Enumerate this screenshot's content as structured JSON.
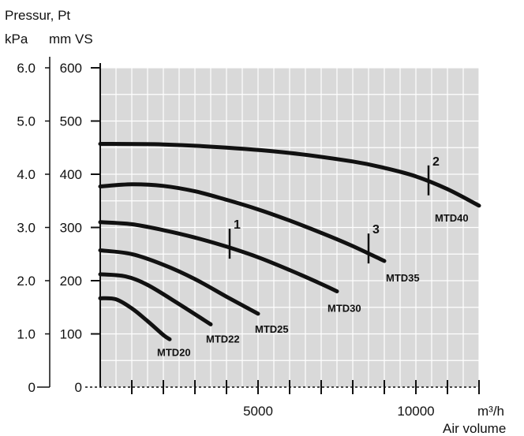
{
  "chart_data": {
    "type": "line",
    "title": "",
    "ylabel": "Pressur, Pt",
    "y_unit_primary": "kPa",
    "y_unit_secondary": "mm VS",
    "xlabel": "Air volume",
    "x_unit": "m³/h",
    "xlim": [
      0,
      12000
    ],
    "ylim": [
      0,
      600
    ],
    "grid": true,
    "y_ticks_kpa": [
      "0",
      "1.0",
      "2.0",
      "3.0",
      "4.0",
      "5.0",
      "6.0"
    ],
    "y_ticks_mmvs": [
      "0",
      "100",
      "200",
      "300",
      "400",
      "500",
      "600"
    ],
    "x_tick_labels": [
      {
        "value": 5000,
        "label": "5000"
      },
      {
        "value": 10000,
        "label": "10000"
      }
    ],
    "series": [
      {
        "name": "MTD20",
        "points": [
          [
            0,
            167
          ],
          [
            500,
            165
          ],
          [
            1000,
            148
          ],
          [
            1500,
            124
          ],
          [
            2000,
            98
          ],
          [
            2200,
            90
          ]
        ]
      },
      {
        "name": "MTD22",
        "points": [
          [
            0,
            212
          ],
          [
            800,
            208
          ],
          [
            1500,
            192
          ],
          [
            2500,
            156
          ],
          [
            3500,
            118
          ]
        ]
      },
      {
        "name": "MTD25",
        "points": [
          [
            0,
            257
          ],
          [
            1000,
            250
          ],
          [
            2000,
            230
          ],
          [
            3000,
            203
          ],
          [
            4000,
            170
          ],
          [
            5000,
            138
          ]
        ]
      },
      {
        "name": "MTD30",
        "points": [
          [
            0,
            310
          ],
          [
            1000,
            306
          ],
          [
            2000,
            295
          ],
          [
            3000,
            281
          ],
          [
            4000,
            264
          ],
          [
            5000,
            244
          ],
          [
            6000,
            220
          ],
          [
            7000,
            194
          ],
          [
            7500,
            180
          ]
        ]
      },
      {
        "name": "MTD35",
        "points": [
          [
            0,
            377
          ],
          [
            1000,
            381
          ],
          [
            2000,
            378
          ],
          [
            3000,
            368
          ],
          [
            4000,
            352
          ],
          [
            5000,
            334
          ],
          [
            6000,
            313
          ],
          [
            7000,
            290
          ],
          [
            8000,
            265
          ],
          [
            9000,
            237
          ]
        ]
      },
      {
        "name": "MTD40",
        "points": [
          [
            0,
            457
          ],
          [
            2000,
            456
          ],
          [
            4000,
            450
          ],
          [
            6000,
            440
          ],
          [
            8000,
            424
          ],
          [
            9000,
            412
          ],
          [
            10000,
            396
          ],
          [
            11000,
            372
          ],
          [
            12000,
            341
          ]
        ]
      }
    ],
    "markers": [
      {
        "label": "1",
        "x": 4100,
        "y": 268
      },
      {
        "label": "2",
        "x": 10400,
        "y": 387
      },
      {
        "label": "3",
        "x": 8500,
        "y": 259
      }
    ]
  }
}
